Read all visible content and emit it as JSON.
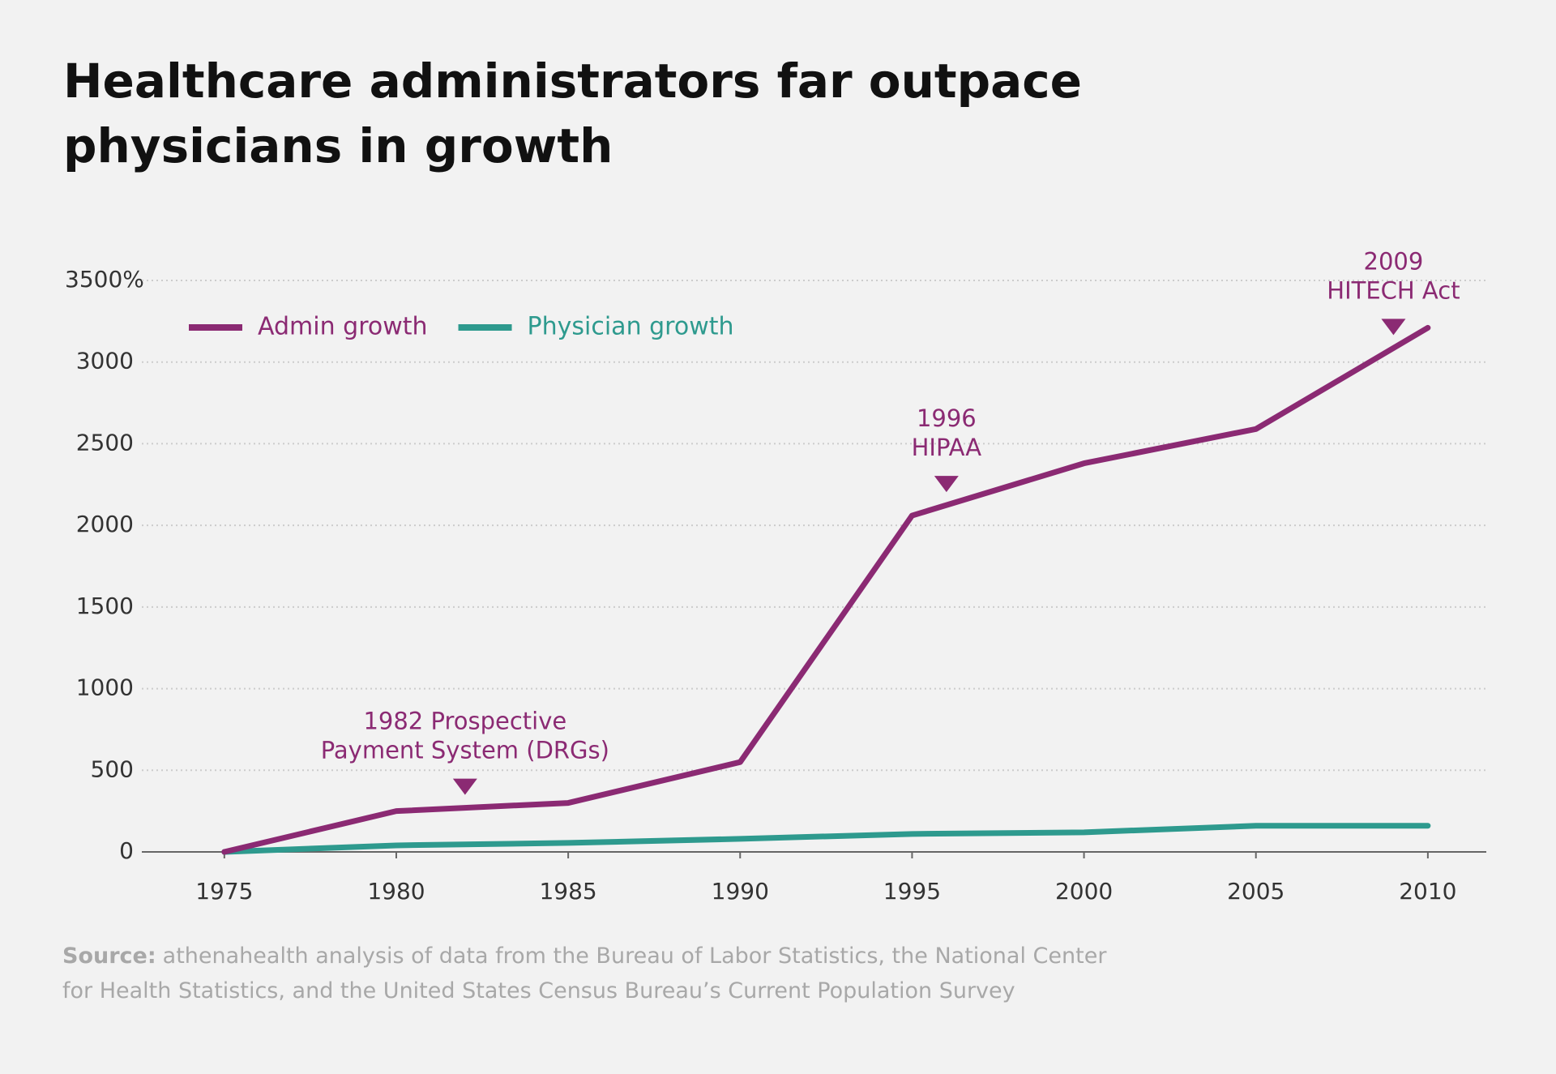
{
  "chart_data": {
    "type": "line",
    "title": [
      "Healthcare administrators far outpace",
      "physicians in growth"
    ],
    "x": [
      1975,
      1980,
      1985,
      1990,
      1995,
      2000,
      2005,
      2010
    ],
    "series": [
      {
        "name": "Admin growth",
        "color": "#8b2a73",
        "values": [
          0,
          250,
          300,
          550,
          2060,
          2380,
          2590,
          3210
        ]
      },
      {
        "name": "Physician growth",
        "color": "#2e9a8e",
        "values": [
          0,
          40,
          55,
          80,
          110,
          120,
          160,
          160
        ]
      }
    ],
    "xlim": [
      1972.6,
      2011.7
    ],
    "xticks": [
      1975,
      1980,
      1985,
      1990,
      1995,
      2000,
      2005,
      2010
    ],
    "ylim": [
      0,
      3500
    ],
    "yticks": [
      0,
      500,
      1000,
      1500,
      2000,
      2500,
      3000,
      {
        "value": 3500,
        "label": "3500%"
      }
    ],
    "grid": true,
    "legend": "top-left",
    "annotations": [
      {
        "x": 1982,
        "text": [
          "1982 Prospective",
          "Payment System (DRGs)"
        ]
      },
      {
        "x": 1996,
        "text": [
          "1996",
          "HIPAA"
        ]
      },
      {
        "x": 2009,
        "text": [
          "2009",
          "HITECH Act"
        ]
      }
    ],
    "source": {
      "label": "Source:",
      "lines": [
        "athenahealth analysis of data from the Bureau of Labor Statistics, the National Center",
        "for Health Statistics, and the United States Census Bureau’s Current Population Survey"
      ]
    }
  }
}
